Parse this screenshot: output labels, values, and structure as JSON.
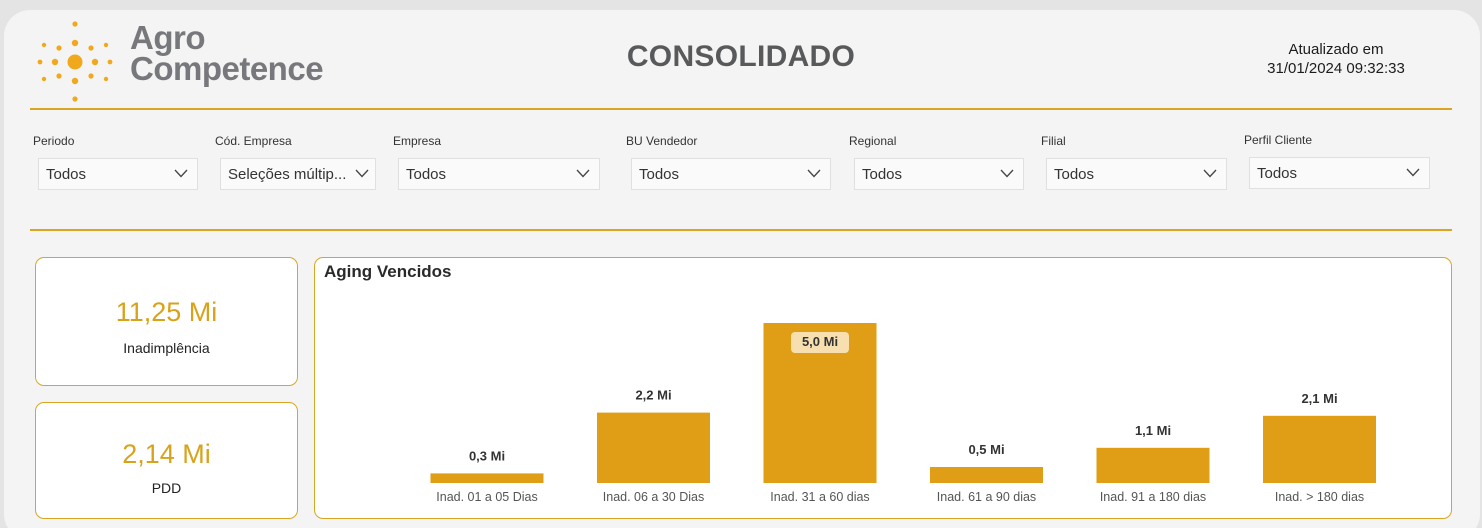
{
  "header": {
    "logo_line1": "Agro",
    "logo_line2": "Competence",
    "title": "CONSOLIDADO",
    "updated_label": "Atualizado em",
    "updated_value": "31/01/2024 09:32:33"
  },
  "filters": [
    {
      "label": "Periodo",
      "value": "Todos"
    },
    {
      "label": "Cód. Empresa",
      "value": "Seleções múltip..."
    },
    {
      "label": "Empresa",
      "value": "Todos"
    },
    {
      "label": "BU Vendedor",
      "value": "Todos"
    },
    {
      "label": "Regional",
      "value": "Todos"
    },
    {
      "label": "Filial",
      "value": "Todos"
    },
    {
      "label": "Perfil Cliente",
      "value": "Todos"
    }
  ],
  "kpis": [
    {
      "value": "11,25 Mi",
      "label": "Inadimplência"
    },
    {
      "value": "2,14 Mi",
      "label": "PDD"
    }
  ],
  "colors": {
    "accent": "#dba421",
    "bar": "#e09e16",
    "kpi": "#d9a21b",
    "highlight_label_bg": "#f7dfb0"
  },
  "icons": {
    "logo": "sunburst-dots-icon",
    "dropdown": "chevron-down-icon"
  },
  "chart_data": {
    "type": "bar",
    "title": "Aging Vencidos",
    "categories": [
      "Inad. 01 a 05 Dias",
      "Inad. 06 a 30 Dias",
      "Inad. 31 a 60 dias",
      "Inad. 61 a 90 dias",
      "Inad. 91 a 180 dias",
      "Inad. > 180 dias"
    ],
    "values": [
      0.3,
      2.2,
      5.0,
      0.5,
      1.1,
      2.1
    ],
    "data_labels": [
      "0,3 Mi",
      "2,2 Mi",
      "5,0 Mi",
      "0,5 Mi",
      "1,1 Mi",
      "2,1 Mi"
    ],
    "highlighted_label_index": 2,
    "ylim": [
      0,
      5.0
    ],
    "grid": false,
    "legend": "none",
    "xlabel": "",
    "ylabel": ""
  }
}
